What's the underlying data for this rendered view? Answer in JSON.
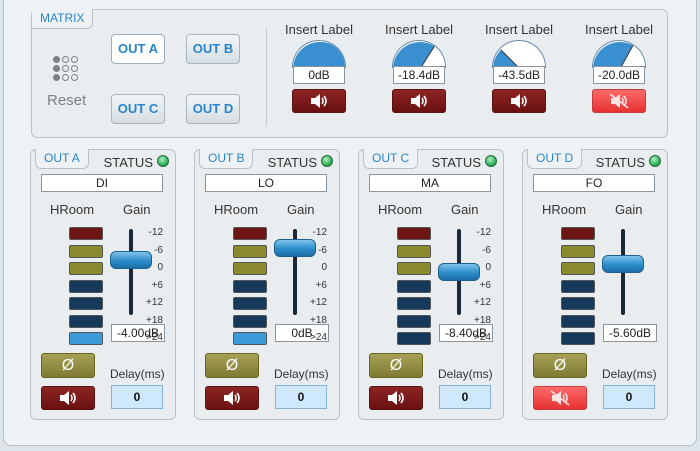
{
  "matrix": {
    "title": "MATRIX",
    "buttons": [
      {
        "label": "OUT A",
        "active": true
      },
      {
        "label": "OUT B",
        "active": false
      },
      {
        "label": "OUT C",
        "active": false
      },
      {
        "label": "OUT D",
        "active": false
      }
    ],
    "reset_label": "Reset",
    "reset_icon": "dot-grid-icon",
    "inserts": [
      {
        "label": "Insert Label",
        "value": "0dB",
        "level": 1.0,
        "muted": false
      },
      {
        "label": "Insert Label",
        "value": "-18.4dB",
        "level": 0.68,
        "muted": false
      },
      {
        "label": "Insert Label",
        "value": "-43.5dB",
        "level": 0.25,
        "muted": false
      },
      {
        "label": "Insert Label",
        "value": "-20.0dB",
        "level": 0.66,
        "muted": true
      }
    ]
  },
  "meter_scale": [
    "-12",
    "-6",
    "0",
    "+6",
    "+12",
    "+18",
    ">24"
  ],
  "labels": {
    "hroom": "HRoom",
    "gain": "Gain",
    "status": "STATUS",
    "delay": "Delay(ms)",
    "phase_symbol": "Ø"
  },
  "colors": {
    "accent": "#2a84c8",
    "mute_off": "#7a1a1a",
    "mute_on": "#f04545",
    "phase": "#958f45",
    "led_ok": "#2fb35a"
  },
  "outputs": [
    {
      "title": "OUT A",
      "name": "DI",
      "gain": "-4.00dB",
      "gain_level": 0.64,
      "muted": false,
      "delay": "0",
      "lit": 6
    },
    {
      "title": "OUT B",
      "name": "LO",
      "gain": "0dB",
      "gain_level": 0.78,
      "muted": false,
      "delay": "0",
      "lit": 6
    },
    {
      "title": "OUT C",
      "name": "MA",
      "gain": "-8.40dB",
      "gain_level": 0.5,
      "muted": false,
      "delay": "0",
      "lit": -1
    },
    {
      "title": "OUT D",
      "name": "FO",
      "gain": "-5.60dB",
      "gain_level": 0.59,
      "muted": true,
      "delay": "0",
      "lit": -1
    }
  ]
}
